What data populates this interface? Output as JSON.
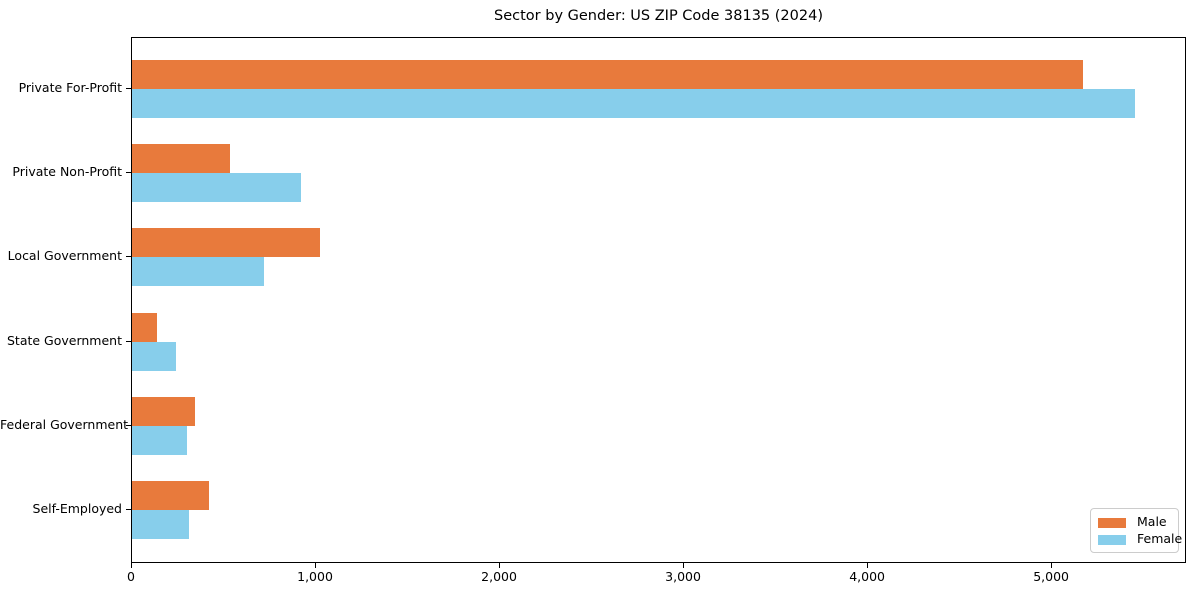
{
  "title": "Sector by Gender: US ZIP Code 38135 (2024)",
  "legend": {
    "position": "lower right",
    "items": [
      {
        "label": "Male",
        "color": "#E87A3C"
      },
      {
        "label": "Female",
        "color": "#87CEEB"
      }
    ]
  },
  "chart_data": {
    "type": "bar",
    "orientation": "horizontal",
    "title": "Sector by Gender: US ZIP Code 38135 (2024)",
    "categories": [
      "Private For-Profit",
      "Private Non-Profit",
      "Local Government",
      "State Government",
      "Federal Government",
      "Self-Employed"
    ],
    "series": [
      {
        "name": "Male",
        "color": "#E87A3C",
        "values": [
          5170,
          530,
          1020,
          135,
          345,
          420
        ]
      },
      {
        "name": "Female",
        "color": "#87CEEB",
        "values": [
          5450,
          920,
          720,
          240,
          300,
          310
        ]
      }
    ],
    "xlabel": "",
    "ylabel": "",
    "xlim": [
      0,
      5722
    ],
    "xticks": [
      0,
      1000,
      2000,
      3000,
      4000,
      5000
    ],
    "xtick_labels": [
      "0",
      "1,000",
      "2,000",
      "3,000",
      "4,000",
      "5,000"
    ],
    "grid": false,
    "legend_position": "lower right"
  }
}
